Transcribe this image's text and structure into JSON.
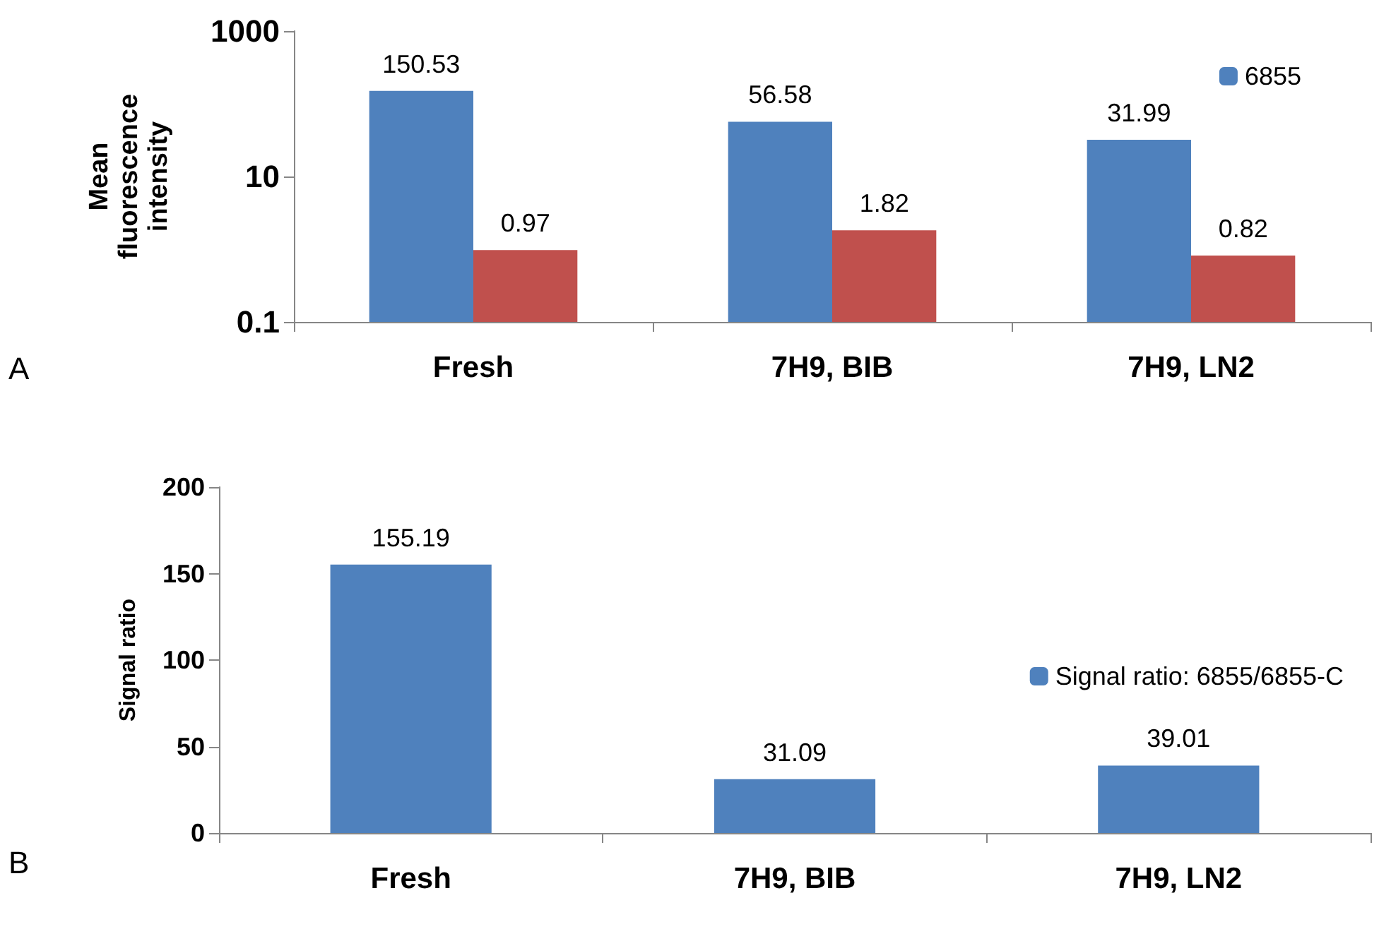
{
  "chart_data": [
    {
      "type": "bar",
      "ylabel": "Mean fluorescence intensity",
      "categories": [
        "Fresh",
        "7H9, BIB",
        "7H9, LN2"
      ],
      "log": true,
      "ylim": [
        0.1,
        1000
      ],
      "yticks": [
        0.1,
        10,
        1000
      ],
      "grid": false,
      "legend": "top right",
      "data_labels": true,
      "annotations": [
        "A"
      ],
      "series": [
        {
          "name": "6855",
          "color": "#4f81bd",
          "values": [
            150.53,
            56.58,
            31.99
          ]
        },
        {
          "color": "#c0504d",
          "values": [
            0.97,
            1.82,
            0.82
          ]
        }
      ]
    },
    {
      "type": "bar",
      "ylabel": "Signal ratio",
      "categories": [
        "Fresh",
        "7H9, BIB",
        "7H9, LN2"
      ],
      "ylim": [
        0,
        200
      ],
      "yticks": [
        0,
        50,
        100,
        150,
        200
      ],
      "grid": false,
      "legend": "right",
      "data_labels": true,
      "annotations": [
        "B"
      ],
      "series": [
        {
          "name": "Signal ratio: 6855/6855-C",
          "color": "#4f81bd",
          "values": [
            155.19,
            31.09,
            39.01
          ]
        }
      ]
    }
  ]
}
